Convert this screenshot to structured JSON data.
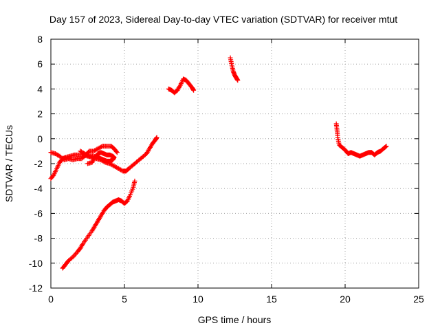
{
  "chart_data": {
    "type": "scatter",
    "title": "Day 157 of 2023, Sidereal Day-to-day VTEC variation (SDTVAR) for receiver mtut",
    "xlabel": "GPS time / hours",
    "ylabel": "SDTVAR / TECUs",
    "xlim": [
      0,
      25
    ],
    "ylim": [
      -12,
      8
    ],
    "xticks": [
      0,
      5,
      10,
      15,
      20,
      25
    ],
    "yticks": [
      -12,
      -10,
      -8,
      -6,
      -4,
      -2,
      0,
      2,
      4,
      6,
      8
    ],
    "grid": true,
    "marker": "+",
    "series": [
      {
        "name": "SDTVAR",
        "color": "#ff0000",
        "segments": [
          [
            [
              0.0,
              -1.1
            ],
            [
              0.3,
              -1.2
            ],
            [
              0.6,
              -1.4
            ],
            [
              0.9,
              -1.7
            ],
            [
              1.2,
              -1.6
            ],
            [
              1.5,
              -1.7
            ],
            [
              1.8,
              -1.6
            ],
            [
              2.1,
              -1.6
            ],
            [
              2.4,
              -1.3
            ],
            [
              2.6,
              -1.0
            ],
            [
              2.9,
              -1.0
            ],
            [
              3.2,
              -0.8
            ],
            [
              3.5,
              -0.6
            ],
            [
              3.8,
              -0.6
            ],
            [
              4.1,
              -0.6
            ],
            [
              4.3,
              -0.8
            ],
            [
              4.5,
              -1.1
            ]
          ],
          [
            [
              2.5,
              -2.0
            ],
            [
              2.8,
              -1.9
            ],
            [
              3.0,
              -1.5
            ],
            [
              3.2,
              -1.2
            ],
            [
              3.4,
              -1.1
            ],
            [
              3.6,
              -1.2
            ],
            [
              3.8,
              -1.3
            ],
            [
              4.0,
              -1.3
            ],
            [
              4.2,
              -1.4
            ],
            [
              4.3,
              -1.5
            ],
            [
              4.2,
              -1.7
            ],
            [
              4.0,
              -1.8
            ],
            [
              3.8,
              -1.8
            ],
            [
              3.6,
              -1.7
            ],
            [
              3.4,
              -1.6
            ],
            [
              3.2,
              -1.5
            ],
            [
              2.9,
              -1.4
            ],
            [
              2.6,
              -1.4
            ],
            [
              2.3,
              -1.2
            ],
            [
              2.0,
              -1.0
            ]
          ],
          [
            [
              0.0,
              -3.2
            ],
            [
              0.2,
              -2.9
            ],
            [
              0.4,
              -2.4
            ],
            [
              0.6,
              -1.9
            ],
            [
              0.8,
              -1.6
            ],
            [
              1.0,
              -1.5
            ],
            [
              1.3,
              -1.4
            ],
            [
              1.6,
              -1.3
            ],
            [
              1.9,
              -1.3
            ],
            [
              2.2,
              -1.3
            ],
            [
              2.5,
              -1.4
            ],
            [
              2.8,
              -1.5
            ],
            [
              3.1,
              -1.6
            ],
            [
              3.4,
              -1.7
            ],
            [
              3.7,
              -1.9
            ],
            [
              4.0,
              -2.0
            ],
            [
              4.3,
              -2.2
            ],
            [
              4.6,
              -2.4
            ],
            [
              4.9,
              -2.6
            ],
            [
              5.1,
              -2.6
            ],
            [
              5.3,
              -2.4
            ],
            [
              5.6,
              -2.1
            ],
            [
              5.9,
              -1.8
            ],
            [
              6.2,
              -1.5
            ],
            [
              6.5,
              -1.2
            ],
            [
              6.7,
              -0.8
            ],
            [
              6.9,
              -0.4
            ],
            [
              7.1,
              -0.1
            ],
            [
              7.2,
              0.1
            ]
          ],
          [
            [
              0.8,
              -10.4
            ],
            [
              1.0,
              -10.1
            ],
            [
              1.2,
              -9.8
            ],
            [
              1.5,
              -9.5
            ],
            [
              1.8,
              -9.1
            ],
            [
              2.0,
              -8.8
            ],
            [
              2.2,
              -8.4
            ],
            [
              2.5,
              -7.9
            ],
            [
              2.8,
              -7.4
            ],
            [
              3.0,
              -7.0
            ],
            [
              3.2,
              -6.6
            ],
            [
              3.4,
              -6.2
            ],
            [
              3.6,
              -5.8
            ],
            [
              3.8,
              -5.5
            ],
            [
              4.0,
              -5.3
            ],
            [
              4.2,
              -5.1
            ],
            [
              4.4,
              -5.0
            ],
            [
              4.6,
              -4.9
            ],
            [
              4.8,
              -5.0
            ],
            [
              5.0,
              -5.2
            ],
            [
              5.2,
              -5.0
            ],
            [
              5.4,
              -4.5
            ],
            [
              5.6,
              -3.9
            ],
            [
              5.7,
              -3.4
            ]
          ],
          [
            [
              8.0,
              4.0
            ],
            [
              8.2,
              3.9
            ],
            [
              8.4,
              3.7
            ],
            [
              8.6,
              3.9
            ],
            [
              8.8,
              4.3
            ],
            [
              9.0,
              4.8
            ],
            [
              9.2,
              4.7
            ],
            [
              9.4,
              4.4
            ],
            [
              9.6,
              4.1
            ],
            [
              9.7,
              3.9
            ]
          ],
          [
            [
              12.2,
              6.5
            ],
            [
              12.3,
              5.9
            ],
            [
              12.4,
              5.4
            ],
            [
              12.5,
              5.1
            ],
            [
              12.6,
              4.9
            ],
            [
              12.7,
              4.7
            ]
          ],
          [
            [
              19.4,
              1.2
            ],
            [
              19.45,
              0.7
            ],
            [
              19.5,
              0.1
            ],
            [
              19.6,
              -0.5
            ],
            [
              19.8,
              -0.7
            ],
            [
              20.0,
              -0.9
            ],
            [
              20.2,
              -1.2
            ],
            [
              20.4,
              -1.1
            ],
            [
              20.6,
              -1.2
            ],
            [
              20.8,
              -1.3
            ],
            [
              21.0,
              -1.4
            ],
            [
              21.2,
              -1.3
            ],
            [
              21.4,
              -1.2
            ],
            [
              21.6,
              -1.1
            ],
            [
              21.8,
              -1.1
            ],
            [
              22.0,
              -1.3
            ],
            [
              22.2,
              -1.1
            ],
            [
              22.4,
              -1.0
            ],
            [
              22.6,
              -0.8
            ],
            [
              22.8,
              -0.6
            ]
          ]
        ]
      }
    ]
  }
}
